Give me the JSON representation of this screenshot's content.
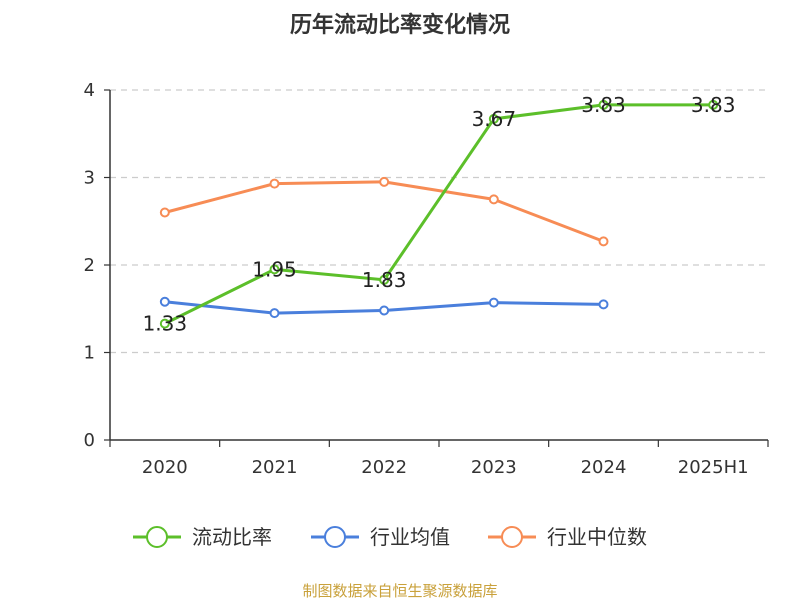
{
  "chart_data": {
    "type": "line",
    "title": "历年流动比率变化情况",
    "categories": [
      "2020",
      "2021",
      "2022",
      "2023",
      "2024",
      "2025H1"
    ],
    "ylim": [
      0,
      4
    ],
    "yticks": [
      0,
      1,
      2,
      3,
      4
    ],
    "grid": true,
    "legend_position": "bottom",
    "series": [
      {
        "name": "流动比率",
        "color": "#5cbf2a",
        "values": [
          1.33,
          1.95,
          1.83,
          3.67,
          3.83,
          3.83
        ],
        "labels": [
          "1.33",
          "1.95",
          "1.83",
          "3.67",
          "3.83",
          "3.83"
        ]
      },
      {
        "name": "行业均值",
        "color": "#4a7fdc",
        "values": [
          1.58,
          1.45,
          1.48,
          1.57,
          1.55,
          null
        ]
      },
      {
        "name": "行业中位数",
        "color": "#f78c55",
        "values": [
          2.6,
          2.93,
          2.95,
          2.75,
          2.27,
          null
        ]
      }
    ]
  },
  "source_text": "制图数据来自恒生聚源数据库",
  "source_color": "#c9a13b"
}
